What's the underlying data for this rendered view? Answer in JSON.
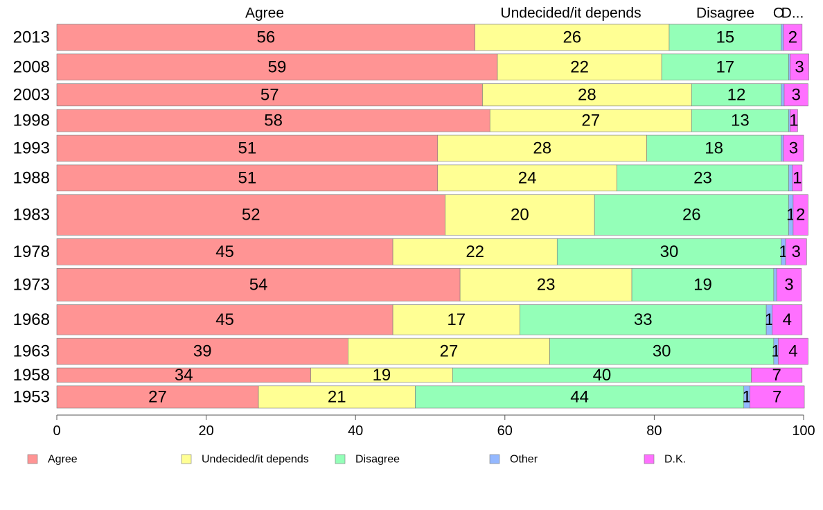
{
  "chart_data": {
    "type": "bar",
    "orientation": "horizontal",
    "stacked": true,
    "categories": [
      "2013",
      "2008",
      "2003",
      "1998",
      "1993",
      "1988",
      "1983",
      "1978",
      "1973",
      "1968",
      "1963",
      "1958",
      "1953"
    ],
    "series": [
      {
        "name": "Agree",
        "color": "#ff9494",
        "values": [
          56,
          59,
          57,
          58,
          51,
          51,
          52,
          45,
          54,
          45,
          39,
          34,
          27
        ]
      },
      {
        "name": "Undecided/it depends",
        "color": "#ffff94",
        "values": [
          26,
          22,
          28,
          27,
          28,
          24,
          20,
          22,
          23,
          17,
          27,
          19,
          21
        ]
      },
      {
        "name": "Disagree",
        "color": "#94ffb8",
        "values": [
          15,
          17,
          12,
          13,
          18,
          23,
          26,
          30,
          19,
          33,
          30,
          40,
          44
        ]
      },
      {
        "name": "Other",
        "color": "#94b8ff",
        "values": [
          0.3,
          0.2,
          0.4,
          0.2,
          0.3,
          0.5,
          0.6,
          0.6,
          0.4,
          0.8,
          0.6,
          0,
          0.8
        ]
      },
      {
        "name": "D.K.",
        "color": "#ff70ff",
        "values": [
          2.5,
          2.5,
          3.2,
          1.0,
          2.7,
          1.3,
          2.0,
          2.8,
          3.3,
          4.0,
          4.0,
          6.8,
          7.3
        ]
      }
    ],
    "value_labels": [
      [
        "56",
        "26",
        "15",
        "",
        "2"
      ],
      [
        "59",
        "22",
        "17",
        "",
        "3"
      ],
      [
        "57",
        "28",
        "12",
        "",
        "3"
      ],
      [
        "58",
        "27",
        "13",
        "",
        "1"
      ],
      [
        "51",
        "28",
        "18",
        "",
        "3"
      ],
      [
        "51",
        "24",
        "23",
        "",
        "1"
      ],
      [
        "52",
        "20",
        "26",
        "1",
        "2"
      ],
      [
        "45",
        "22",
        "30",
        "1",
        "3"
      ],
      [
        "54",
        "23",
        "19",
        "",
        "3"
      ],
      [
        "45",
        "17",
        "33",
        "1",
        "4"
      ],
      [
        "39",
        "27",
        "30",
        "1",
        "4"
      ],
      [
        "34",
        "19",
        "40",
        "",
        "7"
      ],
      [
        "27",
        "21",
        "44",
        "1",
        "7"
      ]
    ],
    "bar_weights": [
      1,
      1,
      0.85,
      0.85,
      1,
      1,
      1.55,
      1,
      1.25,
      1.15,
      1,
      0.55,
      0.85
    ],
    "top_labels": [
      "Agree",
      "Undecided/it depends",
      "Disagree",
      "O",
      "D..."
    ],
    "xlim": [
      0,
      100
    ],
    "xticks": [
      "0",
      "20",
      "40",
      "60",
      "80",
      "100"
    ],
    "grid": false,
    "legend_placement": "bottom",
    "legend": [
      "Agree",
      "Undecided/it depends",
      "Disagree",
      "Other",
      "D.K."
    ]
  }
}
